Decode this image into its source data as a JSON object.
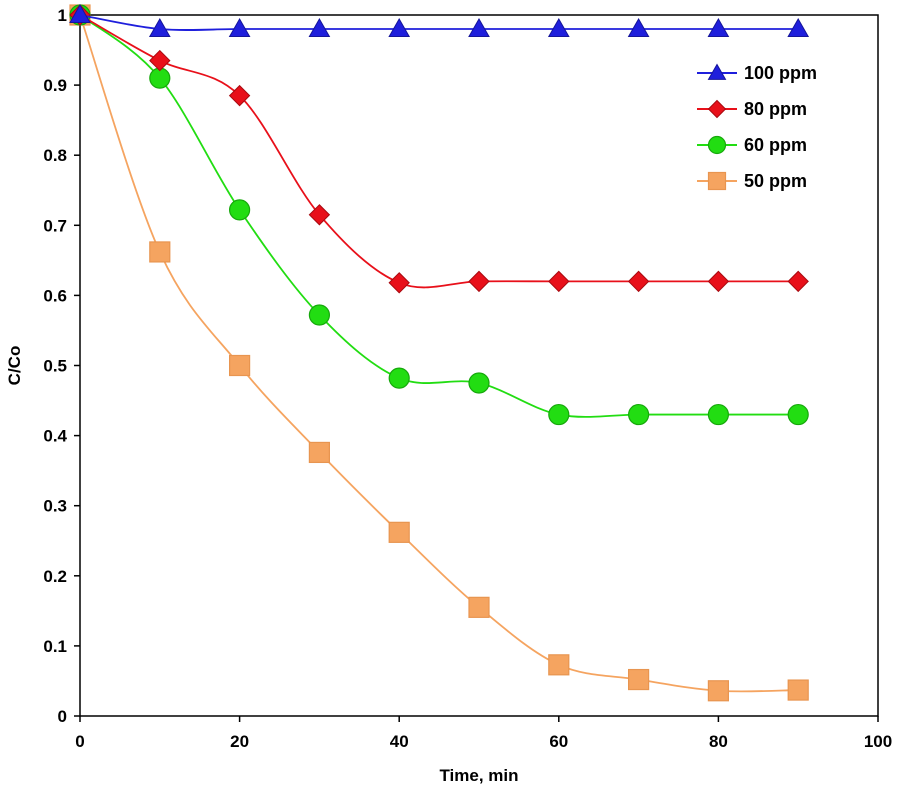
{
  "chart_data": {
    "type": "line",
    "title": "",
    "xlabel": "Time, min",
    "ylabel": "C/Co",
    "xlim": [
      0,
      100
    ],
    "ylim": [
      0,
      1
    ],
    "x_ticks": [
      0,
      20,
      40,
      60,
      80,
      100
    ],
    "y_ticks": [
      0,
      0.1,
      0.2,
      0.3,
      0.4,
      0.5,
      0.6,
      0.7,
      0.8,
      0.9,
      1
    ],
    "x_tick_labels": [
      "0",
      "20",
      "40",
      "60",
      "80",
      "100"
    ],
    "y_tick_labels": [
      "0",
      "0.1",
      "0.2",
      "0.3",
      "0.4",
      "0.5",
      "0.6",
      "0.7",
      "0.8",
      "0.9",
      "1"
    ],
    "grid": false,
    "legend_position": "top-right",
    "x": [
      0,
      10,
      20,
      30,
      40,
      50,
      60,
      70,
      80,
      90
    ],
    "series": [
      {
        "name": "100 ppm",
        "marker": "triangle",
        "color": "#1f1fdc",
        "values": [
          1.0,
          0.98,
          0.98,
          0.98,
          0.98,
          0.98,
          0.98,
          0.98,
          0.98,
          0.98
        ]
      },
      {
        "name": "80 ppm",
        "marker": "diamond",
        "color": "#e8101a",
        "values": [
          1.0,
          0.935,
          0.885,
          0.715,
          0.618,
          0.62,
          0.62,
          0.62,
          0.62,
          0.62
        ]
      },
      {
        "name": "60 ppm",
        "marker": "circle",
        "color": "#22dd12",
        "values": [
          1.0,
          0.91,
          0.722,
          0.572,
          0.482,
          0.475,
          0.43,
          0.43,
          0.43,
          0.43
        ]
      },
      {
        "name": "50 ppm",
        "marker": "square",
        "color": "#f5a460",
        "values": [
          1.0,
          0.662,
          0.5,
          0.376,
          0.262,
          0.155,
          0.073,
          0.052,
          0.036,
          0.037
        ]
      }
    ]
  }
}
